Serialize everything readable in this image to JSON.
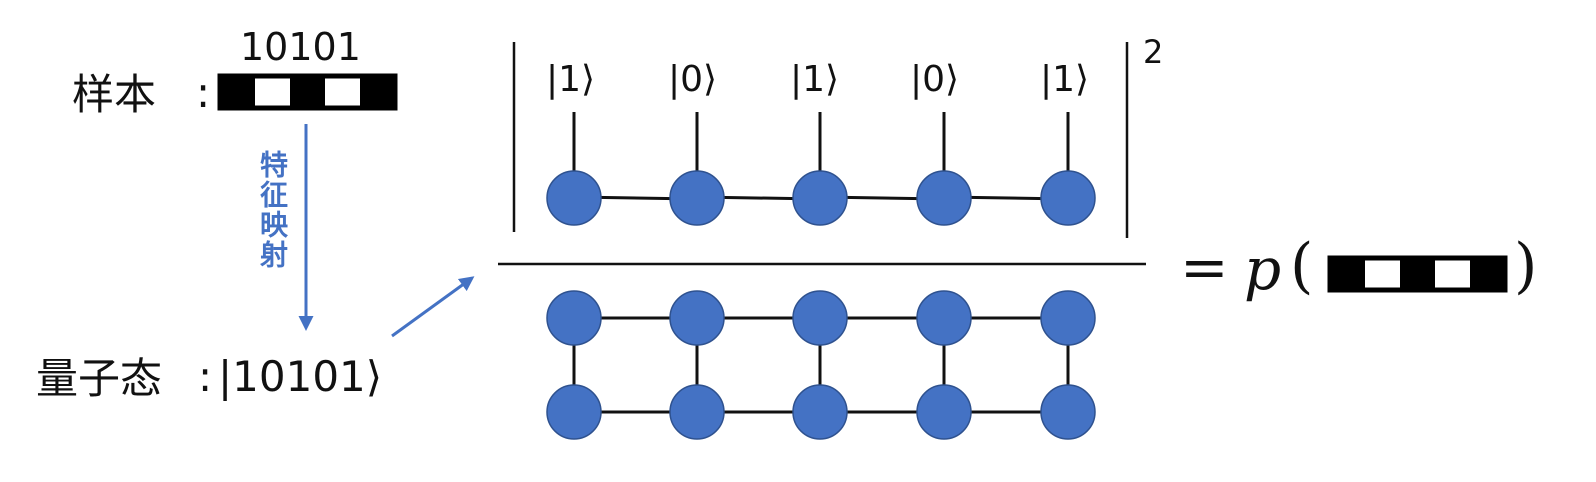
{
  "sample": {
    "label": "样本",
    "colon": ":",
    "bits_text": "10101",
    "bits": [
      1,
      0,
      1,
      0,
      1
    ]
  },
  "mapping": {
    "label": "特征映射"
  },
  "quantum_state": {
    "label": "量子态",
    "colon": ":",
    "ket": "|10101⟩"
  },
  "numerator": {
    "kets": [
      "|1⟩",
      "|0⟩",
      "|1⟩",
      "|0⟩",
      "|1⟩"
    ],
    "exponent": "2"
  },
  "result": {
    "equals": "=",
    "p": "p",
    "open_paren": "(",
    "close_paren": ")",
    "bits": [
      1,
      0,
      1,
      0,
      1
    ]
  },
  "colors": {
    "node_fill": "#4472c4",
    "node_stroke": "#2f528f",
    "arrow": "#4472c4",
    "bit_one": "#000000",
    "bit_zero": "#ffffff"
  }
}
